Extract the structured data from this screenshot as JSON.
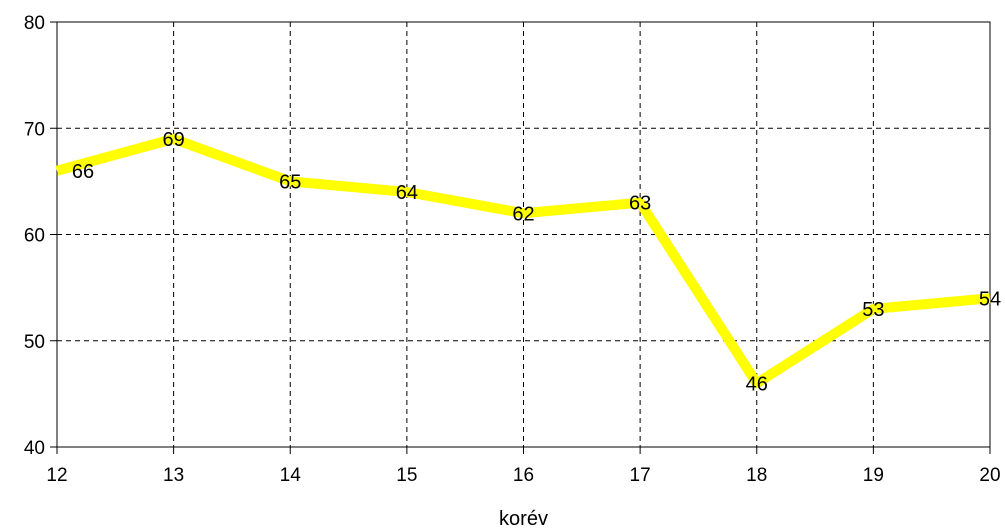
{
  "chart_data": {
    "type": "line",
    "x": [
      12,
      13,
      14,
      15,
      16,
      17,
      18,
      19,
      20
    ],
    "series": [
      {
        "values": [
          66,
          69,
          65,
          64,
          62,
          63,
          46,
          53,
          54
        ]
      }
    ],
    "xlabel": "korév",
    "ylabel": "",
    "xlim": [
      12,
      20
    ],
    "ylim": [
      40,
      80
    ],
    "yticks": [
      40,
      50,
      60,
      70,
      80
    ],
    "xticks": [
      12,
      13,
      14,
      15,
      16,
      17,
      18,
      19,
      20
    ],
    "grid": true,
    "grid_style": "dashed",
    "line_color": "#ffff00",
    "data_labels": true
  }
}
